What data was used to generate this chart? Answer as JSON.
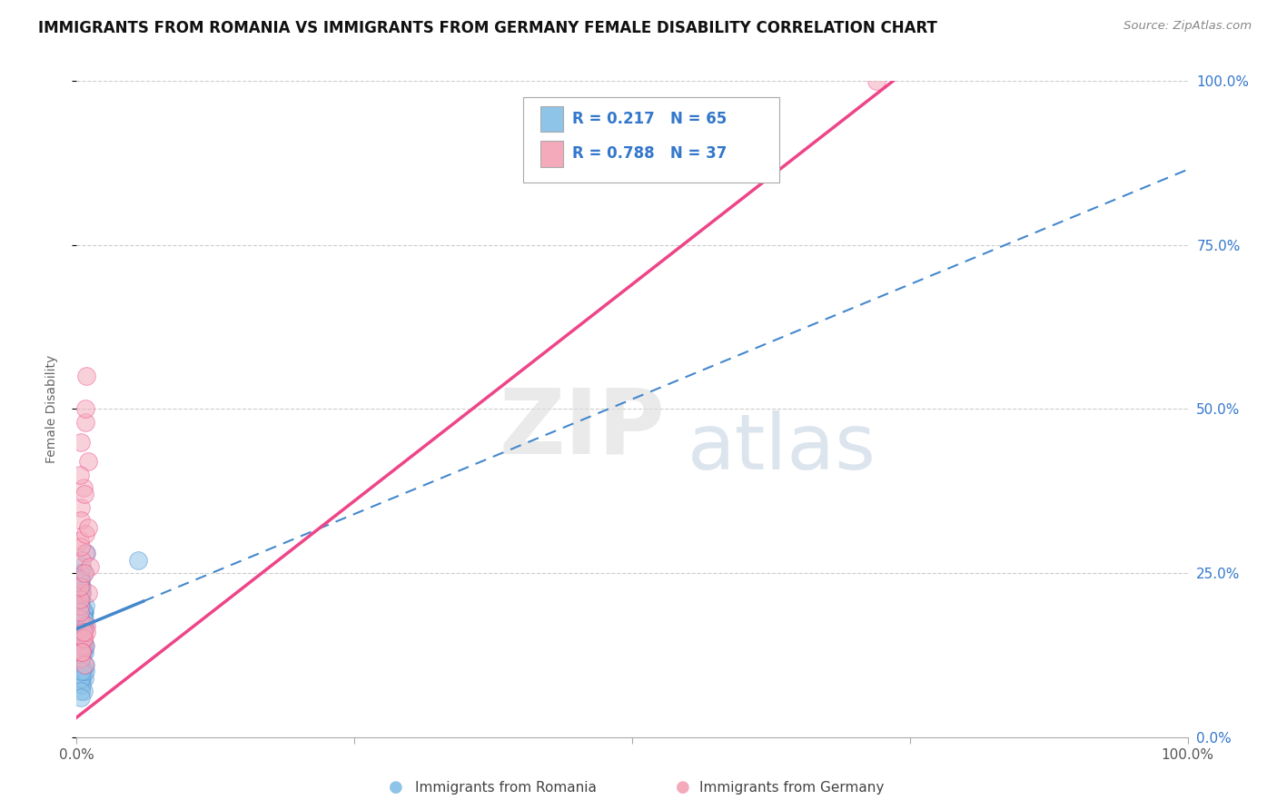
{
  "title": "IMMIGRANTS FROM ROMANIA VS IMMIGRANTS FROM GERMANY FEMALE DISABILITY CORRELATION CHART",
  "source": "Source: ZipAtlas.com",
  "ylabel": "Female Disability",
  "xlim": [
    0,
    1.0
  ],
  "ylim": [
    0,
    1.0
  ],
  "y_tick_labels_right": [
    "0.0%",
    "25.0%",
    "50.0%",
    "75.0%",
    "100.0%"
  ],
  "legend_r1": "R = 0.217",
  "legend_n1": "N = 65",
  "legend_r2": "R = 0.788",
  "legend_n2": "N = 37",
  "color_romania": "#8EC4E8",
  "color_germany": "#F4AABB",
  "trendline_color_romania": "#4488CC",
  "trendline_color_germany": "#EE4488",
  "legend_text_color": "#3377CC",
  "background_color": "#FFFFFF",
  "romania_x": [
    0.005,
    0.003,
    0.004,
    0.006,
    0.004,
    0.005,
    0.007,
    0.006,
    0.005,
    0.003,
    0.004,
    0.006,
    0.005,
    0.007,
    0.004,
    0.005,
    0.006,
    0.005,
    0.004,
    0.005,
    0.007,
    0.004,
    0.005,
    0.006,
    0.003,
    0.005,
    0.007,
    0.003,
    0.006,
    0.004,
    0.003,
    0.005,
    0.004,
    0.008,
    0.004,
    0.006,
    0.005,
    0.004,
    0.007,
    0.003,
    0.008,
    0.004,
    0.005,
    0.006,
    0.008,
    0.003,
    0.005,
    0.004,
    0.006,
    0.003,
    0.005,
    0.007,
    0.009,
    0.004,
    0.004,
    0.005,
    0.004,
    0.008,
    0.004,
    0.006,
    0.055,
    0.003,
    0.005,
    0.004,
    0.003
  ],
  "romania_y": [
    0.18,
    0.15,
    0.12,
    0.14,
    0.13,
    0.16,
    0.17,
    0.19,
    0.11,
    0.1,
    0.21,
    0.13,
    0.22,
    0.09,
    0.15,
    0.16,
    0.1,
    0.14,
    0.12,
    0.17,
    0.19,
    0.08,
    0.16,
    0.07,
    0.11,
    0.09,
    0.13,
    0.1,
    0.19,
    0.15,
    0.12,
    0.08,
    0.11,
    0.14,
    0.09,
    0.16,
    0.13,
    0.07,
    0.17,
    0.12,
    0.1,
    0.15,
    0.14,
    0.25,
    0.11,
    0.22,
    0.2,
    0.06,
    0.19,
    0.15,
    0.1,
    0.18,
    0.28,
    0.2,
    0.24,
    0.23,
    0.21,
    0.2,
    0.22,
    0.18,
    0.27,
    0.24,
    0.26,
    0.23,
    0.25
  ],
  "germany_x": [
    0.006,
    0.004,
    0.005,
    0.003,
    0.008,
    0.003,
    0.006,
    0.009,
    0.004,
    0.007,
    0.003,
    0.005,
    0.01,
    0.004,
    0.009,
    0.005,
    0.003,
    0.007,
    0.004,
    0.01,
    0.003,
    0.008,
    0.006,
    0.004,
    0.009,
    0.003,
    0.007,
    0.012,
    0.005,
    0.008,
    0.006,
    0.003,
    0.007,
    0.01,
    0.004,
    0.008,
    0.72
  ],
  "germany_y": [
    0.15,
    0.12,
    0.22,
    0.3,
    0.28,
    0.18,
    0.38,
    0.17,
    0.35,
    0.14,
    0.2,
    0.13,
    0.42,
    0.24,
    0.16,
    0.27,
    0.19,
    0.11,
    0.33,
    0.22,
    0.21,
    0.48,
    0.15,
    0.29,
    0.55,
    0.23,
    0.37,
    0.26,
    0.13,
    0.31,
    0.16,
    0.4,
    0.25,
    0.32,
    0.45,
    0.5,
    1.0
  ],
  "romania_trend_x0": 0.0,
  "romania_trend_x_solid_end": 0.06,
  "romania_trend_x_dashed_end": 1.0,
  "romania_trend_slope": 0.7,
  "romania_trend_intercept": 0.165,
  "germany_trend_x0": 0.0,
  "germany_trend_x1": 1.0,
  "germany_trend_slope": 1.32,
  "germany_trend_intercept": 0.03
}
